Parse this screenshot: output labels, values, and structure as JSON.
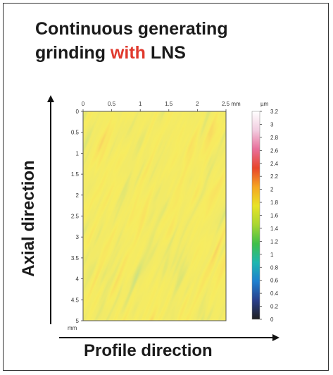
{
  "title": {
    "line1": "Continuous generating",
    "line2_part1": "grinding ",
    "line2_highlight": "with",
    "line2_part2": " LNS"
  },
  "colors": {
    "highlight": "#e03a2e",
    "text": "#1a1a1a"
  },
  "chart_data": {
    "type": "heatmap",
    "xlabel": "Profile direction",
    "ylabel": "Axial direction",
    "x_ticks": [
      0,
      0.5,
      1,
      1.5,
      2
    ],
    "x_tick_labels": [
      "0",
      "0.5",
      "1",
      "1.5",
      "2"
    ],
    "x_end_label": "2.5 mm",
    "xlim": [
      0,
      2.5
    ],
    "y_ticks": [
      0,
      0.5,
      1,
      1.5,
      2,
      2.5,
      3,
      3.5,
      4,
      4.5,
      5
    ],
    "y_tick_labels": [
      "0",
      "0.5",
      "1",
      "1.5",
      "2",
      "2.5",
      "3",
      "3.5",
      "4",
      "4.5",
      "5"
    ],
    "y_unit": "mm",
    "ylim": [
      0,
      5
    ],
    "colorbar": {
      "unit": "µm",
      "range": [
        0,
        3.2
      ],
      "ticks": [
        3.2,
        3,
        2.8,
        2.6,
        2.4,
        2.2,
        2,
        1.8,
        1.6,
        1.4,
        1.2,
        1,
        0.8,
        0.6,
        0.4,
        0.2,
        0
      ],
      "tick_labels": [
        "3.2",
        "3",
        "2.8",
        "2.6",
        "2.4",
        "2.2",
        "2",
        "1.8",
        "1.6",
        "1.4",
        "1.2",
        "1",
        "0.8",
        "0.6",
        "0.4",
        "0.2",
        "0"
      ],
      "colormap": [
        "#202020",
        "#2a3f8a",
        "#1f7fcf",
        "#1fb6b0",
        "#3fbf4a",
        "#a8d632",
        "#e8e326",
        "#f5a623",
        "#e8452a",
        "#e86f9a",
        "#f2cde0",
        "#ffffff"
      ]
    }
  }
}
